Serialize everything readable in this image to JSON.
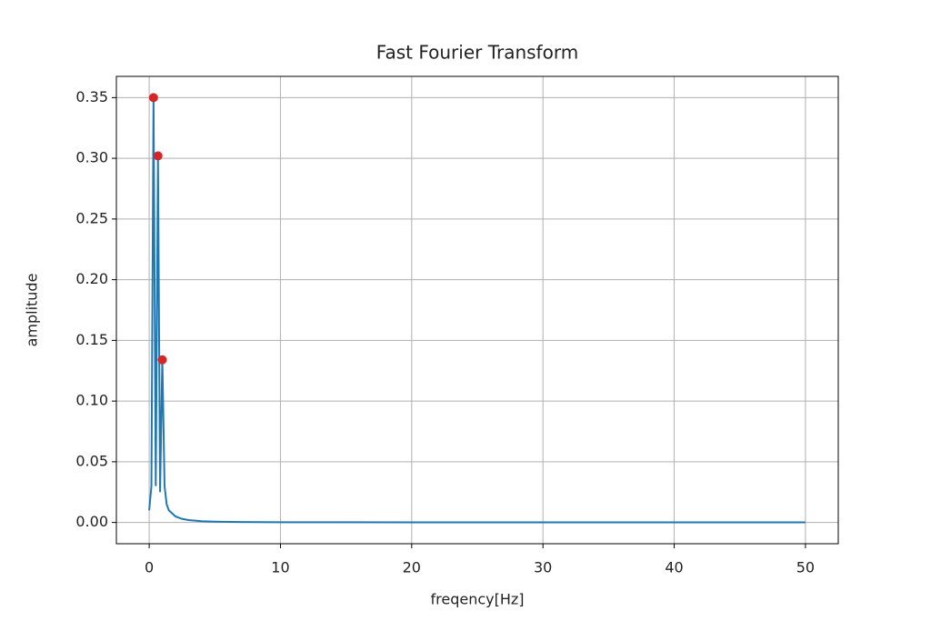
{
  "chart_data": {
    "type": "line",
    "title": "Fast Fourier Transform",
    "x_label": "freqency[Hz]",
    "y_label": "amplitude",
    "x": [
      0,
      0.17,
      0.33,
      0.5,
      0.67,
      0.83,
      1.0,
      1.17,
      1.33,
      1.5,
      2,
      2.5,
      3,
      4,
      5,
      7,
      10,
      20,
      30,
      40,
      50
    ],
    "values": [
      0.01,
      0.03,
      0.35,
      0.03,
      0.3,
      0.025,
      0.135,
      0.03,
      0.015,
      0.01,
      0.005,
      0.003,
      0.002,
      0.001,
      0.0007,
      0.0004,
      0.0002,
      0.0001,
      0.0001,
      0.0001,
      0.0001
    ],
    "color": "#1f77b4",
    "markers": {
      "type": "scatter",
      "x": [
        0.33,
        0.67,
        1.0
      ],
      "values": [
        0.35,
        0.302,
        0.134
      ],
      "color": "#d62728"
    },
    "xlim": [
      -2.5,
      52.5
    ],
    "ylim": [
      -0.0175,
      0.3675
    ],
    "xticks": [
      0,
      10,
      20,
      30,
      40,
      50
    ],
    "yticks": [
      {
        "value": 0,
        "label": "0.00"
      },
      {
        "value": 0.05,
        "label": "0.05"
      },
      {
        "value": 0.1,
        "label": "0.10"
      },
      {
        "value": 0.15,
        "label": "0.15"
      },
      {
        "value": 0.2,
        "label": "0.20"
      },
      {
        "value": 0.25,
        "label": "0.25"
      },
      {
        "value": 0.3,
        "label": "0.30"
      },
      {
        "value": 0.35,
        "label": "0.35"
      }
    ],
    "grid": true
  }
}
